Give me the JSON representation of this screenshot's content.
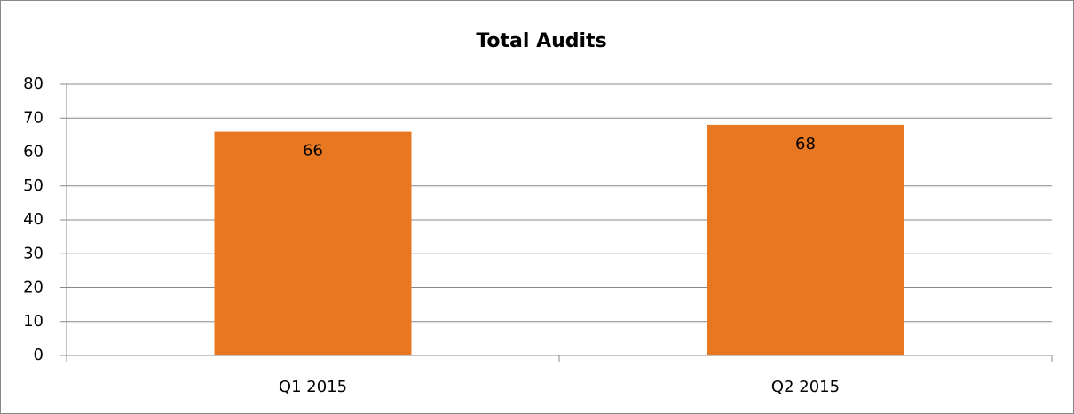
{
  "chart_data": {
    "type": "bar",
    "title": "Total Audits",
    "categories": [
      "Q1 2015",
      "Q2 2015"
    ],
    "values": [
      66,
      68
    ],
    "color": "#e87722",
    "ylim": [
      0,
      80
    ],
    "yticks": [
      0,
      10,
      20,
      30,
      40,
      50,
      60,
      70,
      80
    ],
    "grid": true,
    "data_labels": true
  }
}
